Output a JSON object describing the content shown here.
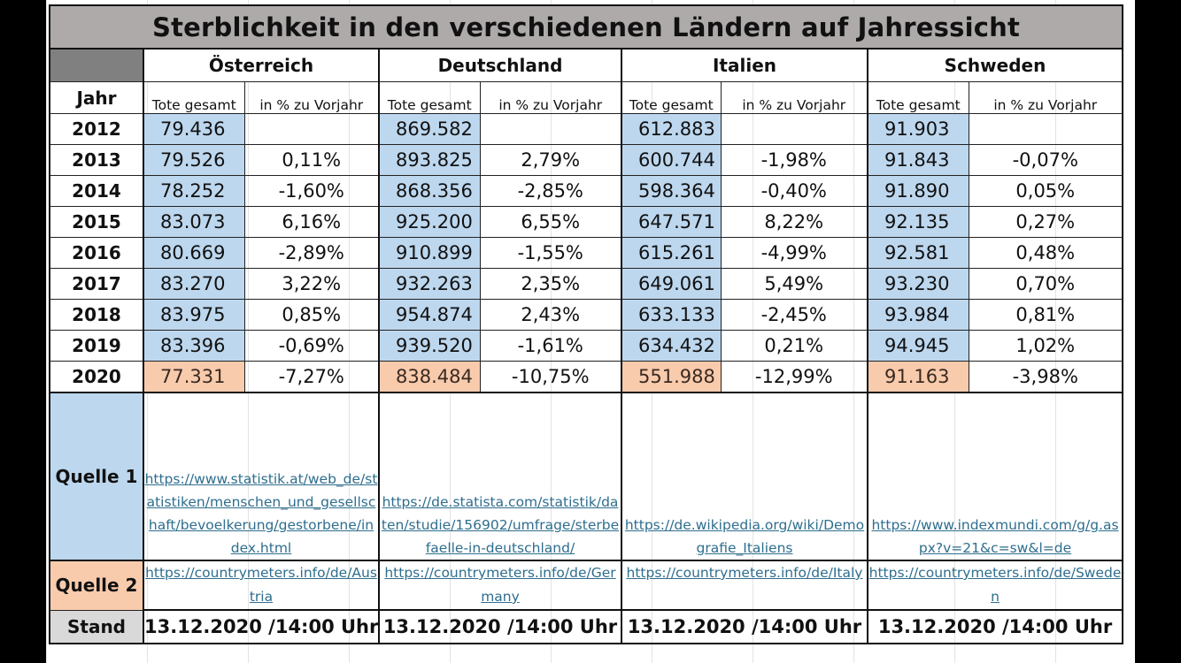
{
  "title": "Sterblichkeit in den verschiedenen Ländern auf Jahressicht",
  "year_header": "Jahr",
  "sub_headers": {
    "total": "Tote gesamt",
    "pct": "in % zu Vorjahr"
  },
  "countries": [
    {
      "name": "Österreich",
      "rows": [
        {
          "total": "79.436",
          "pct": ""
        },
        {
          "total": "79.526",
          "pct": "0,11%"
        },
        {
          "total": "78.252",
          "pct": "-1,60%"
        },
        {
          "total": "83.073",
          "pct": "6,16%"
        },
        {
          "total": "80.669",
          "pct": "-2,89%"
        },
        {
          "total": "83.270",
          "pct": "3,22%"
        },
        {
          "total": "83.975",
          "pct": "0,85%"
        },
        {
          "total": "83.396",
          "pct": "-0,69%"
        },
        {
          "total": "77.331",
          "pct": "-7,27%"
        }
      ],
      "source1": "https://www.statistik.at/web_de/statistiken/menschen_und_gesellschaft/bevoelkerung/gestorbene/index.html",
      "source2": "https://countrymeters.info/de/Austria",
      "stand": "13.12.2020 /14:00 Uhr"
    },
    {
      "name": "Deutschland",
      "rows": [
        {
          "total": "869.582",
          "pct": ""
        },
        {
          "total": "893.825",
          "pct": "2,79%"
        },
        {
          "total": "868.356",
          "pct": "-2,85%"
        },
        {
          "total": "925.200",
          "pct": "6,55%"
        },
        {
          "total": "910.899",
          "pct": "-1,55%"
        },
        {
          "total": "932.263",
          "pct": "2,35%"
        },
        {
          "total": "954.874",
          "pct": "2,43%"
        },
        {
          "total": "939.520",
          "pct": "-1,61%"
        },
        {
          "total": "838.484",
          "pct": "-10,75%"
        }
      ],
      "source1": "https://de.statista.com/statistik/daten/studie/156902/umfrage/sterbefaelle-in-deutschland/",
      "source2": "https://countrymeters.info/de/Germany",
      "stand": "13.12.2020 /14:00 Uhr"
    },
    {
      "name": "Italien",
      "rows": [
        {
          "total": "612.883",
          "pct": ""
        },
        {
          "total": "600.744",
          "pct": "-1,98%"
        },
        {
          "total": "598.364",
          "pct": "-0,40%"
        },
        {
          "total": "647.571",
          "pct": "8,22%"
        },
        {
          "total": "615.261",
          "pct": "-4,99%"
        },
        {
          "total": "649.061",
          "pct": "5,49%"
        },
        {
          "total": "633.133",
          "pct": "-2,45%"
        },
        {
          "total": "634.432",
          "pct": "0,21%"
        },
        {
          "total": "551.988",
          "pct": "-12,99%"
        }
      ],
      "source1": "https://de.wikipedia.org/wiki/Demografie_Italiens",
      "source2": "https://countrymeters.info/de/Italy",
      "stand": "13.12.2020 /14:00 Uhr"
    },
    {
      "name": "Schweden",
      "rows": [
        {
          "total": "91.903",
          "pct": ""
        },
        {
          "total": "91.843",
          "pct": "-0,07%"
        },
        {
          "total": "91.890",
          "pct": "0,05%"
        },
        {
          "total": "92.135",
          "pct": "0,27%"
        },
        {
          "total": "92.581",
          "pct": "0,48%"
        },
        {
          "total": "93.230",
          "pct": "0,70%"
        },
        {
          "total": "93.984",
          "pct": "0,81%"
        },
        {
          "total": "94.945",
          "pct": "1,02%"
        },
        {
          "total": "91.163",
          "pct": "-3,98%"
        }
      ],
      "source1": "https://www.indexmundi.com/g/g.aspx?v=21&c=sw&l=de",
      "source2": "https://countrymeters.info/de/Sweden",
      "stand": "13.12.2020 /14:00 Uhr"
    }
  ],
  "years": [
    "2012",
    "2013",
    "2014",
    "2015",
    "2016",
    "2017",
    "2018",
    "2019",
    "2020"
  ],
  "labels": {
    "source1": "Quelle 1",
    "source2": "Quelle 2",
    "stand": "Stand"
  },
  "colors": {
    "title_bg": "#aeaaaa",
    "corner_bg": "#808080",
    "baseline_cell": "#bdd7ee",
    "current_year_cell": "#f8cbad",
    "stand_bg": "#d9d9d9",
    "link": "#2e6e8e"
  }
}
